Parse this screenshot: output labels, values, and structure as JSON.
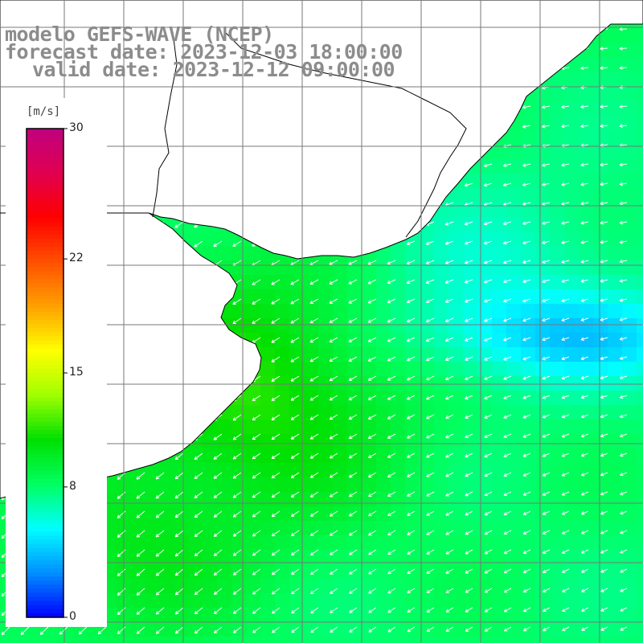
{
  "title": {
    "model": "modelo GEFS-WAVE (NCEP)",
    "forecast": "forecast date: 2023-12-03 18:00:00",
    "valid": "valid date: 2023-12-12 09:00:00"
  },
  "colorbar": {
    "unit": "[m/s]",
    "min": 0,
    "max": 30,
    "ticks": [
      "30",
      "22",
      "15",
      "8",
      "0"
    ],
    "tick_values": [
      30,
      22,
      15,
      8,
      0
    ],
    "colors": [
      "#0000ff",
      "#0090ff",
      "#00ffff",
      "#00ff60",
      "#00e000",
      "#a0ff00",
      "#ffff00",
      "#ffa000",
      "#ff5000",
      "#ff0000",
      "#e00050",
      "#c00080"
    ]
  },
  "colors": {
    "land": "#ffffff",
    "coast": "#000000",
    "grid": "#777777",
    "arrow": "#ffffff",
    "title": "#8c8c8c"
  },
  "field": {
    "speed_range_ms": [
      4,
      12
    ],
    "wind_direction_general": "from northeast over coastal waters, from east offshore"
  }
}
